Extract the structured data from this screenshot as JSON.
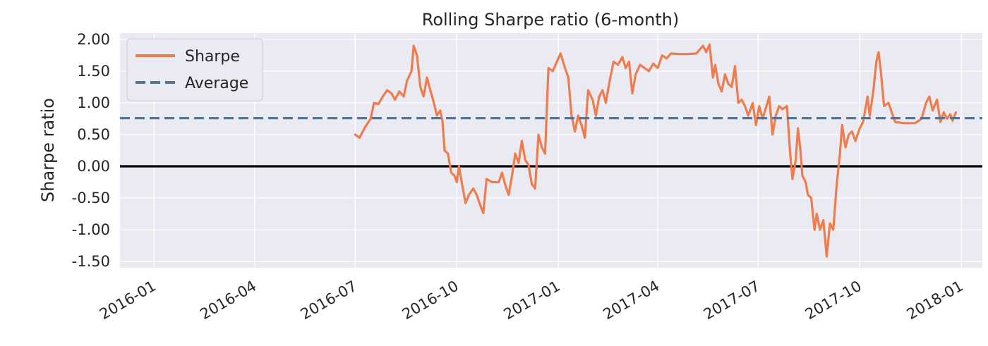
{
  "chart_data": {
    "type": "line",
    "title": "Rolling Sharpe ratio (6-month)",
    "xlabel": "",
    "ylabel": "Sharpe ratio",
    "xlim": [
      "2015-12-01",
      "2018-01-20"
    ],
    "ylim": [
      -1.6,
      2.1
    ],
    "x_ticks": [
      "2016-01",
      "2016-04",
      "2016-07",
      "2016-10",
      "2017-01",
      "2017-04",
      "2017-07",
      "2017-10",
      "2018-01"
    ],
    "y_ticks": [
      "2.00",
      "1.50",
      "1.00",
      "0.50",
      "0.00",
      "-0.50",
      "-1.00",
      "-1.50"
    ],
    "grid": true,
    "legend": "top-left",
    "zero_line": 0,
    "series": [
      {
        "name": "Sharpe",
        "color": "#ef7c4d",
        "style": "solid",
        "points": [
          [
            "2016-07-01",
            0.5
          ],
          [
            "2016-07-05",
            0.45
          ],
          [
            "2016-07-10",
            0.62
          ],
          [
            "2016-07-15",
            0.75
          ],
          [
            "2016-07-18",
            1.0
          ],
          [
            "2016-07-22",
            0.98
          ],
          [
            "2016-07-26",
            1.1
          ],
          [
            "2016-07-30",
            1.2
          ],
          [
            "2016-08-03",
            1.15
          ],
          [
            "2016-08-06",
            1.05
          ],
          [
            "2016-08-10",
            1.18
          ],
          [
            "2016-08-14",
            1.1
          ],
          [
            "2016-08-17",
            1.35
          ],
          [
            "2016-08-21",
            1.5
          ],
          [
            "2016-08-23",
            1.9
          ],
          [
            "2016-08-26",
            1.75
          ],
          [
            "2016-08-29",
            1.25
          ],
          [
            "2016-09-01",
            1.1
          ],
          [
            "2016-09-04",
            1.4
          ],
          [
            "2016-09-07",
            1.2
          ],
          [
            "2016-09-10",
            1.02
          ],
          [
            "2016-09-13",
            0.8
          ],
          [
            "2016-09-16",
            0.88
          ],
          [
            "2016-09-18",
            0.72
          ],
          [
            "2016-09-20",
            0.25
          ],
          [
            "2016-09-23",
            0.2
          ],
          [
            "2016-09-26",
            -0.1
          ],
          [
            "2016-09-29",
            -0.15
          ],
          [
            "2016-10-01",
            -0.25
          ],
          [
            "2016-10-03",
            0.0
          ],
          [
            "2016-10-06",
            -0.3
          ],
          [
            "2016-10-09",
            -0.58
          ],
          [
            "2016-10-12",
            -0.45
          ],
          [
            "2016-10-16",
            -0.35
          ],
          [
            "2016-10-19",
            -0.45
          ],
          [
            "2016-10-22",
            -0.6
          ],
          [
            "2016-10-25",
            -0.74
          ],
          [
            "2016-10-28",
            -0.2
          ],
          [
            "2016-11-02",
            -0.25
          ],
          [
            "2016-11-08",
            -0.25
          ],
          [
            "2016-11-11",
            -0.1
          ],
          [
            "2016-11-14",
            -0.3
          ],
          [
            "2016-11-17",
            -0.45
          ],
          [
            "2016-11-20",
            -0.15
          ],
          [
            "2016-11-23",
            0.2
          ],
          [
            "2016-11-26",
            0.05
          ],
          [
            "2016-11-29",
            0.4
          ],
          [
            "2016-12-02",
            0.1
          ],
          [
            "2016-12-05",
            0.02
          ],
          [
            "2016-12-08",
            -0.28
          ],
          [
            "2016-12-11",
            -0.35
          ],
          [
            "2016-12-14",
            0.5
          ],
          [
            "2016-12-17",
            0.3
          ],
          [
            "2016-12-20",
            0.2
          ],
          [
            "2016-12-23",
            1.55
          ],
          [
            "2016-12-27",
            1.5
          ],
          [
            "2016-12-30",
            1.62
          ],
          [
            "2017-01-03",
            1.78
          ],
          [
            "2017-01-07",
            1.55
          ],
          [
            "2017-01-10",
            1.4
          ],
          [
            "2017-01-13",
            0.8
          ],
          [
            "2017-01-16",
            0.55
          ],
          [
            "2017-01-19",
            0.8
          ],
          [
            "2017-01-22",
            0.65
          ],
          [
            "2017-01-25",
            0.45
          ],
          [
            "2017-01-28",
            1.2
          ],
          [
            "2017-02-01",
            1.05
          ],
          [
            "2017-02-04",
            0.8
          ],
          [
            "2017-02-07",
            1.1
          ],
          [
            "2017-02-10",
            1.2
          ],
          [
            "2017-02-13",
            1.0
          ],
          [
            "2017-02-16",
            1.3
          ],
          [
            "2017-02-20",
            1.65
          ],
          [
            "2017-02-24",
            1.6
          ],
          [
            "2017-02-28",
            1.72
          ],
          [
            "2017-03-03",
            1.55
          ],
          [
            "2017-03-06",
            1.65
          ],
          [
            "2017-03-09",
            1.15
          ],
          [
            "2017-03-12",
            1.45
          ],
          [
            "2017-03-16",
            1.6
          ],
          [
            "2017-03-20",
            1.55
          ],
          [
            "2017-03-24",
            1.5
          ],
          [
            "2017-03-28",
            1.62
          ],
          [
            "2017-04-01",
            1.55
          ],
          [
            "2017-04-05",
            1.75
          ],
          [
            "2017-04-09",
            1.7
          ],
          [
            "2017-04-13",
            1.78
          ],
          [
            "2017-04-20",
            1.77
          ],
          [
            "2017-04-28",
            1.77
          ],
          [
            "2017-05-06",
            1.78
          ],
          [
            "2017-05-12",
            1.9
          ],
          [
            "2017-05-15",
            1.8
          ],
          [
            "2017-05-18",
            1.92
          ],
          [
            "2017-05-21",
            1.4
          ],
          [
            "2017-05-23",
            1.6
          ],
          [
            "2017-05-26",
            1.3
          ],
          [
            "2017-05-29",
            1.18
          ],
          [
            "2017-06-01",
            1.45
          ],
          [
            "2017-06-04",
            1.3
          ],
          [
            "2017-06-07",
            1.25
          ],
          [
            "2017-06-10",
            1.58
          ],
          [
            "2017-06-13",
            1.0
          ],
          [
            "2017-06-16",
            1.05
          ],
          [
            "2017-06-19",
            0.95
          ],
          [
            "2017-06-22",
            0.8
          ],
          [
            "2017-06-26",
            1.0
          ],
          [
            "2017-06-29",
            0.65
          ],
          [
            "2017-07-02",
            0.95
          ],
          [
            "2017-07-05",
            0.75
          ],
          [
            "2017-07-08",
            0.92
          ],
          [
            "2017-07-11",
            1.1
          ],
          [
            "2017-07-14",
            0.5
          ],
          [
            "2017-07-17",
            0.8
          ],
          [
            "2017-07-20",
            0.95
          ],
          [
            "2017-07-23",
            0.9
          ],
          [
            "2017-07-27",
            0.95
          ],
          [
            "2017-07-30",
            0.2
          ],
          [
            "2017-08-01",
            -0.2
          ],
          [
            "2017-08-04",
            0.1
          ],
          [
            "2017-08-06",
            0.6
          ],
          [
            "2017-08-08",
            0.3
          ],
          [
            "2017-08-10",
            -0.15
          ],
          [
            "2017-08-13",
            -0.25
          ],
          [
            "2017-08-15",
            -0.45
          ],
          [
            "2017-08-18",
            -0.5
          ],
          [
            "2017-08-21",
            -1.0
          ],
          [
            "2017-08-23",
            -0.75
          ],
          [
            "2017-08-26",
            -1.0
          ],
          [
            "2017-08-29",
            -0.85
          ],
          [
            "2017-09-01",
            -1.42
          ],
          [
            "2017-09-04",
            -0.9
          ],
          [
            "2017-09-07",
            -1.0
          ],
          [
            "2017-09-10",
            -0.3
          ],
          [
            "2017-09-13",
            0.2
          ],
          [
            "2017-09-15",
            0.65
          ],
          [
            "2017-09-18",
            0.3
          ],
          [
            "2017-09-21",
            0.5
          ],
          [
            "2017-09-24",
            0.55
          ],
          [
            "2017-09-27",
            0.4
          ],
          [
            "2017-10-01",
            0.6
          ],
          [
            "2017-10-04",
            0.7
          ],
          [
            "2017-10-08",
            1.1
          ],
          [
            "2017-10-10",
            0.8
          ],
          [
            "2017-10-13",
            1.15
          ],
          [
            "2017-10-16",
            1.65
          ],
          [
            "2017-10-18",
            1.8
          ],
          [
            "2017-10-20",
            1.5
          ],
          [
            "2017-10-23",
            0.95
          ],
          [
            "2017-10-27",
            1.0
          ],
          [
            "2017-10-30",
            0.85
          ],
          [
            "2017-11-02",
            0.7
          ],
          [
            "2017-11-10",
            0.68
          ],
          [
            "2017-11-20",
            0.68
          ],
          [
            "2017-11-26",
            0.75
          ],
          [
            "2017-11-30",
            1.0
          ],
          [
            "2017-12-03",
            1.1
          ],
          [
            "2017-12-06",
            0.88
          ],
          [
            "2017-12-10",
            1.05
          ],
          [
            "2017-12-13",
            0.7
          ],
          [
            "2017-12-16",
            0.85
          ],
          [
            "2017-12-19",
            0.75
          ],
          [
            "2017-12-22",
            0.82
          ],
          [
            "2017-12-24",
            0.72
          ],
          [
            "2017-12-27",
            0.85
          ]
        ]
      },
      {
        "name": "Average",
        "color": "#5a7391",
        "style": "dashed",
        "y": 0.76
      }
    ]
  }
}
